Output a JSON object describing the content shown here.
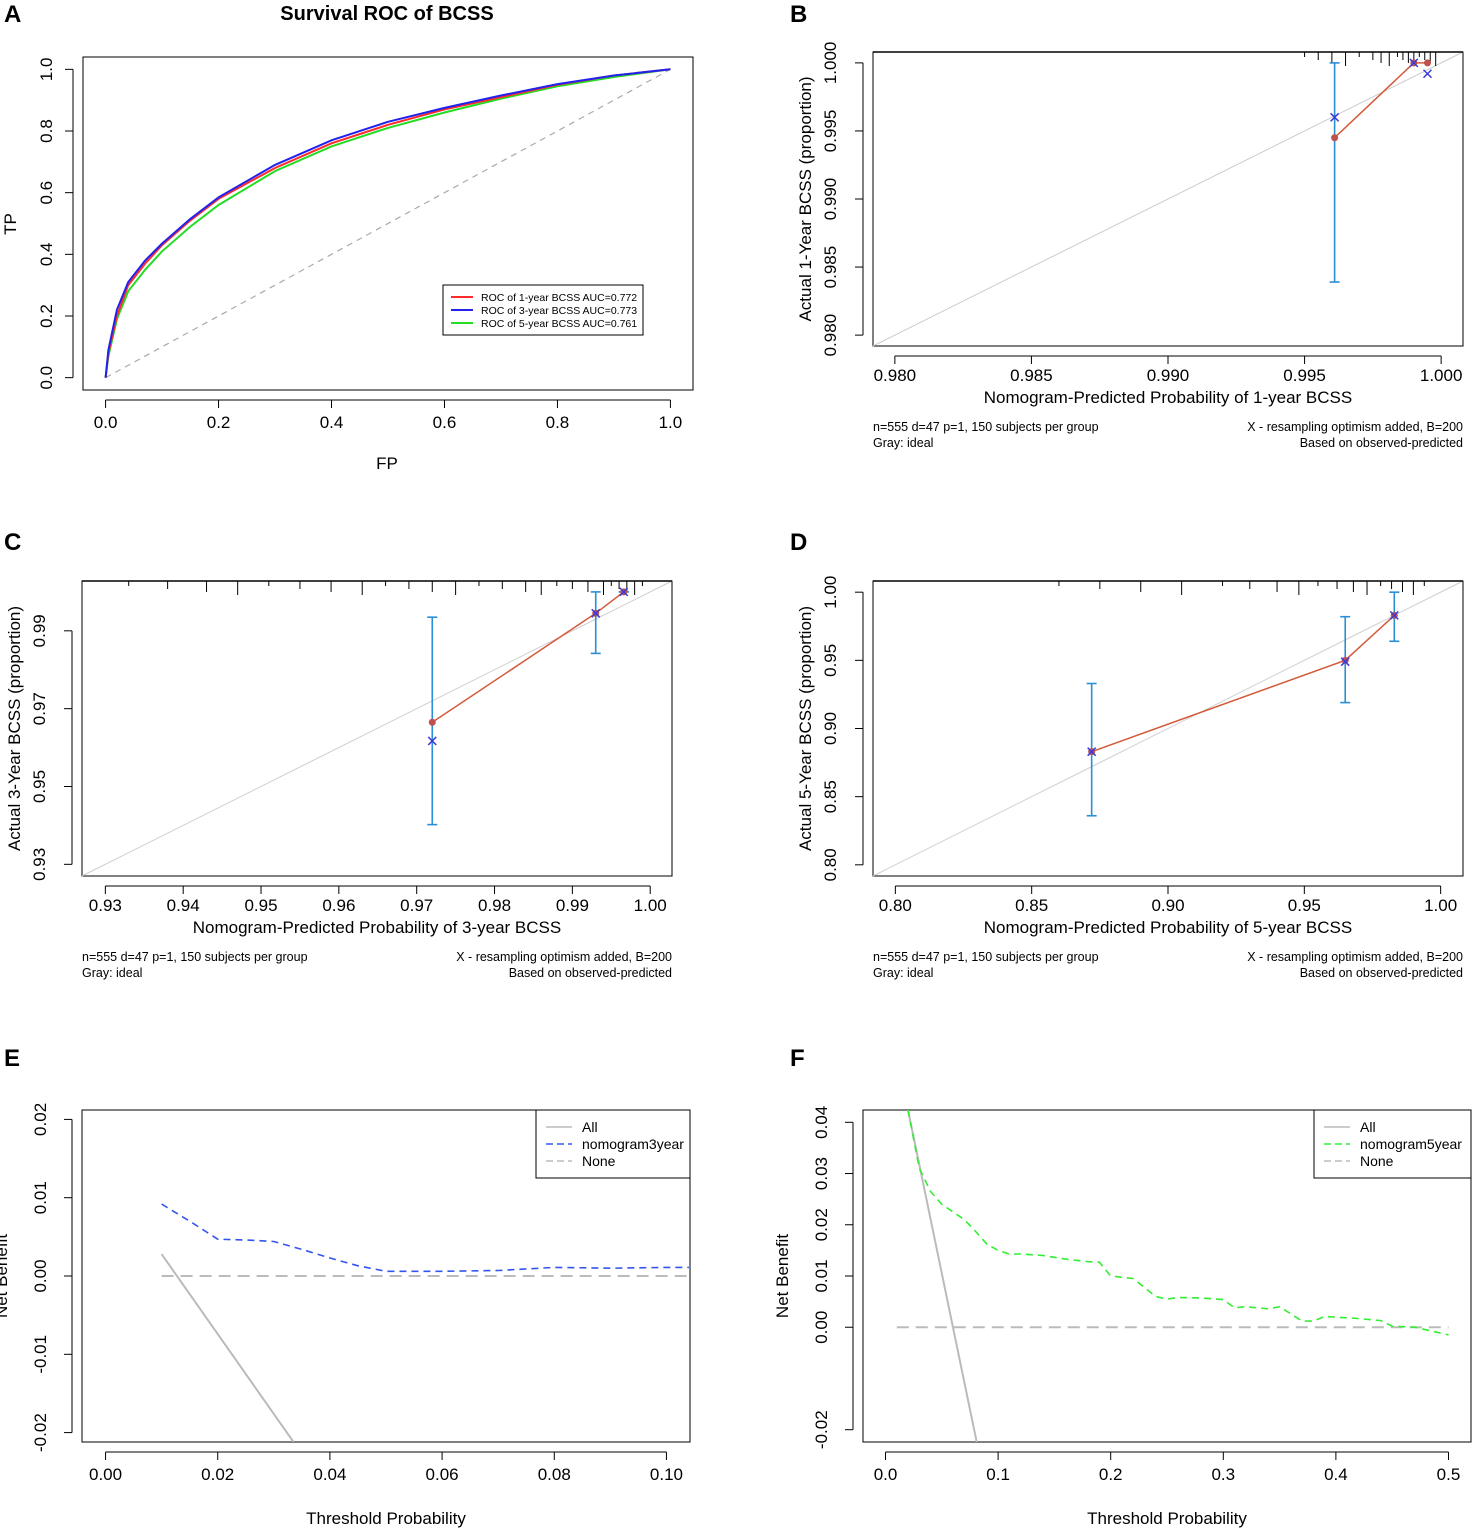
{
  "chart_data": [
    {
      "panel": "A",
      "type": "line",
      "title": "Survival ROC of BCSS",
      "xlabel": "FP",
      "ylabel": "TP",
      "xlim": [
        0,
        1
      ],
      "ylim": [
        0,
        1
      ],
      "xticks": [
        0.0,
        0.2,
        0.4,
        0.6,
        0.8,
        1.0
      ],
      "xtick_labels": [
        "0.0",
        "0.2",
        "0.4",
        "0.6",
        "0.8",
        "1.0"
      ],
      "yticks": [
        0.0,
        0.2,
        0.4,
        0.6,
        0.8,
        1.0
      ],
      "ytick_labels": [
        "0.0",
        "0.2",
        "0.4",
        "0.6",
        "0.8",
        "1.0"
      ],
      "legend": "bottom-right",
      "series": [
        {
          "name": "ROC of 1-year BCSS AUC=0.772",
          "color": "#ff2a2a",
          "x": [
            0,
            0.005,
            0.02,
            0.04,
            0.07,
            0.1,
            0.15,
            0.2,
            0.3,
            0.4,
            0.5,
            0.6,
            0.7,
            0.8,
            0.9,
            1.0
          ],
          "y": [
            0,
            0.08,
            0.2,
            0.3,
            0.37,
            0.43,
            0.51,
            0.58,
            0.68,
            0.76,
            0.82,
            0.87,
            0.91,
            0.95,
            0.98,
            1.0
          ]
        },
        {
          "name": "ROC of 3-year BCSS AUC=0.773",
          "color": "#2222ee",
          "x": [
            0,
            0.005,
            0.02,
            0.04,
            0.07,
            0.1,
            0.15,
            0.2,
            0.3,
            0.4,
            0.5,
            0.6,
            0.7,
            0.8,
            0.9,
            1.0
          ],
          "y": [
            0,
            0.09,
            0.22,
            0.31,
            0.38,
            0.435,
            0.515,
            0.585,
            0.69,
            0.77,
            0.83,
            0.875,
            0.915,
            0.952,
            0.98,
            1.0
          ]
        },
        {
          "name": "ROC of 5-year BCSS AUC=0.761",
          "color": "#22dd22",
          "x": [
            0,
            0.005,
            0.02,
            0.04,
            0.07,
            0.1,
            0.15,
            0.2,
            0.3,
            0.4,
            0.5,
            0.6,
            0.7,
            0.8,
            0.9,
            1.0
          ],
          "y": [
            0,
            0.07,
            0.19,
            0.28,
            0.35,
            0.41,
            0.49,
            0.56,
            0.67,
            0.75,
            0.81,
            0.86,
            0.905,
            0.945,
            0.975,
            1.0
          ]
        }
      ],
      "reference_line": "diagonal dashed gray"
    },
    {
      "panel": "B",
      "type": "scatter",
      "xlabel": "Nomogram-Predicted Probability of 1-year BCSS",
      "ylabel": "Actual 1-Year BCSS (proportion)",
      "xlim": [
        0.9792,
        1.0008
      ],
      "ylim": [
        0.9792,
        1.0008
      ],
      "xticks": [
        0.98,
        0.985,
        0.99,
        0.995,
        1.0
      ],
      "xtick_labels": [
        "0.980",
        "0.985",
        "0.990",
        "0.995",
        "1.000"
      ],
      "yticks": [
        0.98,
        0.985,
        0.99,
        0.995,
        1.0
      ],
      "ytick_labels": [
        "0.980",
        "0.985",
        "0.990",
        "0.995",
        "1.000"
      ],
      "observed": {
        "x": [
          0.9961,
          0.999,
          0.9995
        ],
        "y": [
          0.9945,
          1.0,
          1.0
        ]
      },
      "corrected": {
        "x": [
          0.9961,
          0.999,
          0.9995
        ],
        "y": [
          0.996,
          1.0,
          0.9992
        ]
      },
      "error_bars": [
        {
          "x": 0.9961,
          "low": 0.9839,
          "high": 1.0
        }
      ],
      "rug": [
        0.995,
        0.9955,
        0.996,
        0.9965,
        0.997,
        0.9975,
        0.9978,
        0.9981,
        0.9984,
        0.9986,
        0.9988,
        0.999,
        0.9992,
        0.9994,
        0.9996,
        0.9998
      ],
      "notes": {
        "left1": "n=555 d=47 p=1, 150 subjects per group",
        "left2": "Gray: ideal",
        "right1": "X - resampling optimism added, B=200",
        "right2": "Based on observed-predicted"
      }
    },
    {
      "panel": "C",
      "type": "scatter",
      "xlabel": "Nomogram-Predicted Probability of 3-year BCSS",
      "ylabel": "Actual 3-Year BCSS (proportion)",
      "xlim": [
        0.927,
        1.0028
      ],
      "ylim": [
        0.927,
        1.0028
      ],
      "xticks": [
        0.93,
        0.94,
        0.95,
        0.96,
        0.97,
        0.98,
        0.99,
        1.0
      ],
      "xtick_labels": [
        "0.93",
        "0.94",
        "0.95",
        "0.96",
        "0.97",
        "0.98",
        "0.99",
        "1.00"
      ],
      "yticks": [
        0.93,
        0.95,
        0.97,
        0.99
      ],
      "ytick_labels": [
        "0.93",
        "0.95",
        "0.97",
        "0.99"
      ],
      "observed": {
        "x": [
          0.972,
          0.993,
          0.9966
        ],
        "y": [
          0.9665,
          0.9945,
          1.0
        ]
      },
      "corrected": {
        "x": [
          0.972,
          0.993,
          0.9966
        ],
        "y": [
          0.9617,
          0.9945,
          1.0
        ]
      },
      "error_bars": [
        {
          "x": 0.972,
          "low": 0.9402,
          "high": 0.9935
        },
        {
          "x": 0.993,
          "low": 0.9842,
          "high": 1.0
        },
        {
          "x": 0.9966,
          "low": 1.0,
          "high": 1.0
        }
      ],
      "rug": [
        0.933,
        0.938,
        0.943,
        0.947,
        0.951,
        0.955,
        0.959,
        0.963,
        0.966,
        0.969,
        0.972,
        0.975,
        0.978,
        0.981,
        0.984,
        0.986,
        0.988,
        0.99,
        0.992,
        0.994,
        0.995,
        0.996,
        0.997,
        0.998,
        0.999
      ],
      "notes": {
        "left1": "n=555 d=47 p=1, 150 subjects per group",
        "left2": "Gray: ideal",
        "right1": "X - resampling optimism added, B=200",
        "right2": "Based on observed-predicted"
      }
    },
    {
      "panel": "D",
      "type": "scatter",
      "xlabel": "Nomogram-Predicted Probability of 5-year BCSS",
      "ylabel": "Actual 5-Year BCSS (proportion)",
      "xlim": [
        0.7918,
        1.0082
      ],
      "ylim": [
        0.7918,
        1.0082
      ],
      "xticks": [
        0.8,
        0.85,
        0.9,
        0.95,
        1.0
      ],
      "xtick_labels": [
        "0.80",
        "0.85",
        "0.90",
        "0.95",
        "1.00"
      ],
      "yticks": [
        0.8,
        0.85,
        0.9,
        0.95,
        1.0
      ],
      "ytick_labels": [
        "0.80",
        "0.85",
        "0.90",
        "0.95",
        "1.00"
      ],
      "observed": {
        "x": [
          0.872,
          0.965,
          0.983
        ],
        "y": [
          0.883,
          0.95,
          0.983
        ]
      },
      "corrected": {
        "x": [
          0.872,
          0.965,
          0.983
        ],
        "y": [
          0.883,
          0.949,
          0.983
        ]
      },
      "error_bars": [
        {
          "x": 0.872,
          "low": 0.836,
          "high": 0.933
        },
        {
          "x": 0.965,
          "low": 0.919,
          "high": 0.982
        },
        {
          "x": 0.983,
          "low": 0.964,
          "high": 1.0
        }
      ],
      "rug": [
        0.86,
        0.875,
        0.89,
        0.905,
        0.92,
        0.93,
        0.94,
        0.948,
        0.955,
        0.962,
        0.968,
        0.973,
        0.978,
        0.982,
        0.986,
        0.99,
        0.994
      ],
      "notes": {
        "left1": "n=555 d=47 p=1, 150 subjects per group",
        "left2": "Gray: ideal",
        "right1": "X - resampling optimism added, B=200",
        "right2": "Based on observed-predicted"
      }
    },
    {
      "panel": "E",
      "type": "line",
      "xlabel": "Threshold Probability",
      "ylabel": "Net Benefit",
      "xlim": [
        -0.0042,
        0.1042
      ],
      "ylim": [
        -0.0212,
        0.0212
      ],
      "xticks": [
        0.0,
        0.02,
        0.04,
        0.06,
        0.08,
        0.1
      ],
      "xtick_labels": [
        "0.00",
        "0.02",
        "0.04",
        "0.06",
        "0.08",
        "0.10"
      ],
      "yticks": [
        -0.02,
        -0.01,
        0.0,
        0.01,
        0.02
      ],
      "ytick_labels": [
        "-0.02",
        "-0.01",
        "0.00",
        "0.01",
        "0.02"
      ],
      "legend": "top-right",
      "series": [
        {
          "name": "All",
          "color": "#bbbbbb",
          "style": "solid",
          "x": [
            0.01,
            0.0335
          ],
          "y": [
            0.0028,
            -0.0212
          ]
        },
        {
          "name": "nomogram3year",
          "color": "#3355ee",
          "style": "dashed",
          "x": [
            0.01,
            0.015,
            0.02,
            0.025,
            0.03,
            0.035,
            0.04,
            0.045,
            0.05,
            0.06,
            0.07,
            0.08,
            0.09,
            0.1,
            0.104
          ],
          "y": [
            0.0092,
            0.007,
            0.0047,
            0.0046,
            0.0044,
            0.0034,
            0.0023,
            0.0013,
            0.0006,
            0.0006,
            0.0007,
            0.0011,
            0.001,
            0.0011,
            0.0011
          ]
        },
        {
          "name": "None",
          "color": "#bbbbbb",
          "style": "dashed",
          "x": [
            0.01,
            0.104
          ],
          "y": [
            0,
            0
          ]
        }
      ]
    },
    {
      "panel": "F",
      "type": "line",
      "xlabel": "Threshold Probability",
      "ylabel": "Net Benefit",
      "xlim": [
        -0.02,
        0.52
      ],
      "ylim": [
        -0.0224,
        0.0424
      ],
      "xticks": [
        0.0,
        0.1,
        0.2,
        0.3,
        0.4,
        0.5
      ],
      "xtick_labels": [
        "0.0",
        "0.1",
        "0.2",
        "0.3",
        "0.4",
        "0.5"
      ],
      "yticks": [
        -0.02,
        0.0,
        0.01,
        0.02,
        0.03,
        0.04
      ],
      "ytick_labels": [
        "-0.02",
        "0.00",
        "0.01",
        "0.02",
        "0.03",
        "0.04"
      ],
      "legend": "top-right",
      "series": [
        {
          "name": "All",
          "color": "#bbbbbb",
          "style": "solid",
          "x": [
            0.02,
            0.081
          ],
          "y": [
            0.0424,
            -0.0224
          ]
        },
        {
          "name": "nomogram5year",
          "color": "#33ee33",
          "style": "dashed",
          "x": [
            0.02,
            0.03,
            0.04,
            0.05,
            0.06,
            0.07,
            0.08,
            0.09,
            0.1,
            0.11,
            0.12,
            0.14,
            0.16,
            0.18,
            0.19,
            0.2,
            0.22,
            0.24,
            0.25,
            0.26,
            0.28,
            0.3,
            0.31,
            0.32,
            0.34,
            0.35,
            0.37,
            0.38,
            0.39,
            0.42,
            0.44,
            0.45,
            0.47,
            0.5
          ],
          "y": [
            0.0424,
            0.031,
            0.0265,
            0.024,
            0.0225,
            0.021,
            0.0187,
            0.0162,
            0.015,
            0.0143,
            0.0143,
            0.014,
            0.0133,
            0.0128,
            0.0127,
            0.01,
            0.0095,
            0.006,
            0.0055,
            0.0058,
            0.0057,
            0.0054,
            0.0038,
            0.004,
            0.0036,
            0.004,
            0.0012,
            0.0012,
            0.0021,
            0.0017,
            0.0013,
            0.0002,
            0.0,
            -0.0015
          ]
        },
        {
          "name": "None",
          "color": "#bbbbbb",
          "style": "dashed",
          "x": [
            0.01,
            0.5
          ],
          "y": [
            0,
            0
          ]
        }
      ]
    }
  ]
}
